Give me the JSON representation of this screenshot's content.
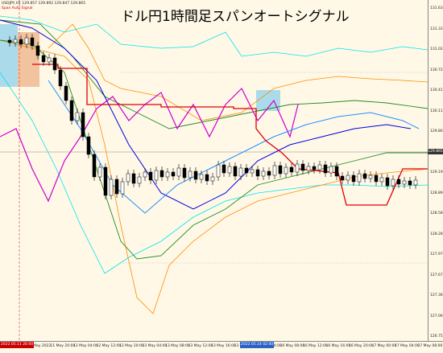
{
  "header": {
    "title": "ドル円1時間足スパンオートシグナル",
    "symbol_info": "USDJPY,H1  129.857 129.892 129.847 129.865",
    "indicator_label": "Span Auto Signal"
  },
  "price_axis": {
    "labels": [
      "131.635",
      "131.330",
      "131.025",
      "130.720",
      "130.415",
      "130.110",
      "129.805",
      "129.500",
      "129.195",
      "128.890",
      "128.585",
      "128.280",
      "127.975",
      "127.670",
      "127.365",
      "127.060",
      "126.755"
    ],
    "current_price": "129.865"
  },
  "time_axis": {
    "labels": [
      "11 May 2022",
      "11 May 20:00",
      "12 May 04:00",
      "12 May 12:00",
      "12 May 20:00",
      "13 May 04:00",
      "13 May 08:00",
      "13 May 12:00",
      "13 May 16:00",
      "13 May 20:00",
      "16 May 04:00",
      "16 May 08:00",
      "16 May 12:00",
      "16 May 16:00",
      "16 May 20:00",
      "17 May 00:00",
      "17 May 04:00",
      "17 May 08:00"
    ],
    "highlight_left": "2022.05.11 20:00",
    "highlight_mid": "2022.05.14 02:00"
  },
  "colors": {
    "background": "#fff8e7",
    "bull_candle": "#ffffff",
    "bear_candle": "#000000",
    "resistance": "#e00000",
    "span_a": "#ff8c00",
    "span_b": "#228b22",
    "ma_fast": "#0000dd",
    "ma_slow": "#1e90ff",
    "chikou": "#cc00cc",
    "band_outer": "#00e5ee",
    "cloud": "#87ceeb"
  }
}
